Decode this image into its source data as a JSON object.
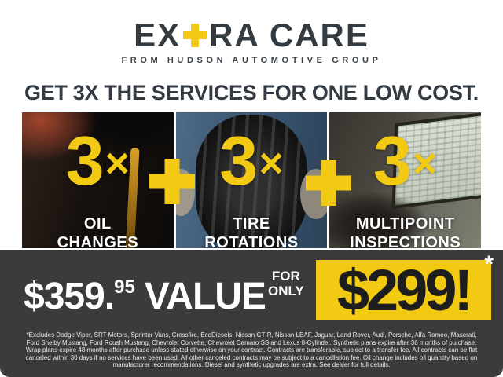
{
  "brand": {
    "logo_prefix": "EX",
    "logo_suffix": "RA CARE",
    "tagline": "FROM HUDSON AUTOMOTIVE GROUP"
  },
  "headline": "GET 3X THE SERVICES FOR ONE LOW COST.",
  "services": [
    {
      "number": "3",
      "times": "×",
      "label_line1": "OIL",
      "label_line2": "CHANGES"
    },
    {
      "number": "3",
      "times": "×",
      "label_line1": "TIRE",
      "label_line2": "ROTATIONS"
    },
    {
      "number": "3",
      "times": "×",
      "label_line1": "MULTIPOINT",
      "label_line2": "INSPECTIONS"
    }
  ],
  "offer": {
    "value_main": "$359.",
    "value_cents": "95",
    "value_label": "VALUE",
    "qualifier_line1": "FOR",
    "qualifier_line2": "ONLY",
    "price": "$299!",
    "price_footnote_marker": "*"
  },
  "disclaimer": "*Excludes Dodge Viper, SRT Motors, Sprinter Vans, Crossfire, EcoDiesels, Nissan GT-R, Nissan LEAF, Jaguar, Land Rover, Audi, Porsche, Alfa Romeo, Maserati, Ford Shelby Mustang, Ford Roush Mustang, Chevrolet Corvette, Chevrolet Camaro SS and Lexus 8-Cylinder. Synthetic plans expire after 36 months of purchase. Wrap plans expire 48 months after purchase unless stated otherwise on your contract. Contracts are transferable, subject to a transfer fee. All contracts can be flat canceled within 30 days if no services have been used. All other canceled contracts may be subject to a cancellation fee. Oil change includes oil quantity based on manufacturer recommendations. Diesel and synthetic upgrades are extra. See dealer for full details.",
  "colors": {
    "accent_yellow": "#F2C913",
    "band_dark": "#3B3B3B",
    "text_dark": "#333A40"
  }
}
